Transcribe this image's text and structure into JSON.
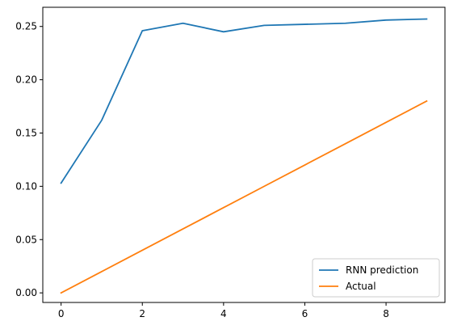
{
  "chart_data": {
    "type": "line",
    "title": "",
    "xlabel": "",
    "ylabel": "",
    "xlim": [
      -0.45,
      9.45
    ],
    "ylim": [
      -0.009,
      0.268
    ],
    "x_ticks": [
      0,
      2,
      4,
      6,
      8
    ],
    "x_tick_labels": [
      "0",
      "2",
      "4",
      "6",
      "8"
    ],
    "y_ticks": [
      0.0,
      0.05,
      0.1,
      0.15,
      0.2,
      0.25
    ],
    "y_tick_labels": [
      "0.00",
      "0.05",
      "0.10",
      "0.15",
      "0.20",
      "0.25"
    ],
    "grid": false,
    "legend_position": "lower-right",
    "x": [
      0,
      1,
      2,
      3,
      4,
      5,
      6,
      7,
      8,
      9
    ],
    "series": [
      {
        "name": "RNN prediction",
        "color": "#1f77b4",
        "values": [
          0.103,
          0.162,
          0.246,
          0.253,
          0.245,
          0.251,
          0.252,
          0.253,
          0.256,
          0.257
        ]
      },
      {
        "name": "Actual",
        "color": "#ff7f0e",
        "values": [
          0.0,
          0.02,
          0.04,
          0.06,
          0.08,
          0.1,
          0.12,
          0.14,
          0.16,
          0.18
        ]
      }
    ]
  }
}
